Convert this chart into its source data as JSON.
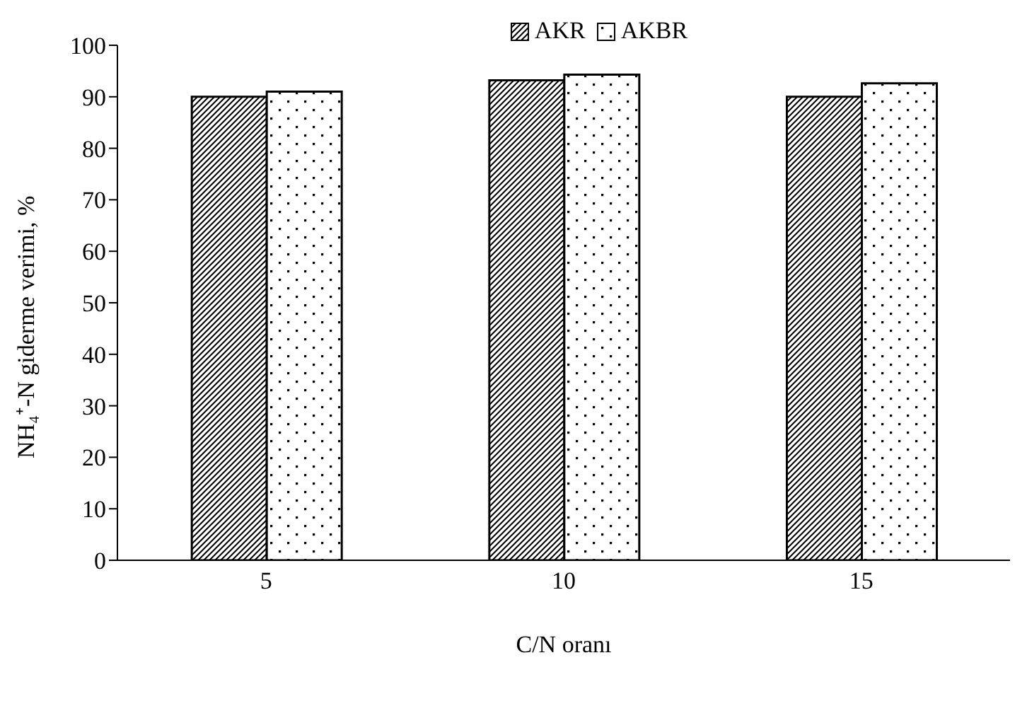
{
  "chart_data": {
    "type": "bar",
    "xlabel": "C/N oranı",
    "ylabel": "NH₄⁺-N giderme verimi, %",
    "categories": [
      "5",
      "10",
      "15"
    ],
    "series": [
      {
        "name": "AKR",
        "color": "#000000",
        "values": [
          90,
          93.2,
          90
        ]
      },
      {
        "name": "AKBR",
        "color": "#000000",
        "values": [
          91,
          94.3,
          92.6
        ]
      }
    ],
    "ylim": [
      0,
      100
    ],
    "yticks": [
      0,
      10,
      20,
      30,
      40,
      50,
      60,
      70,
      80,
      90,
      100
    ],
    "grid": false,
    "legend": "top"
  }
}
